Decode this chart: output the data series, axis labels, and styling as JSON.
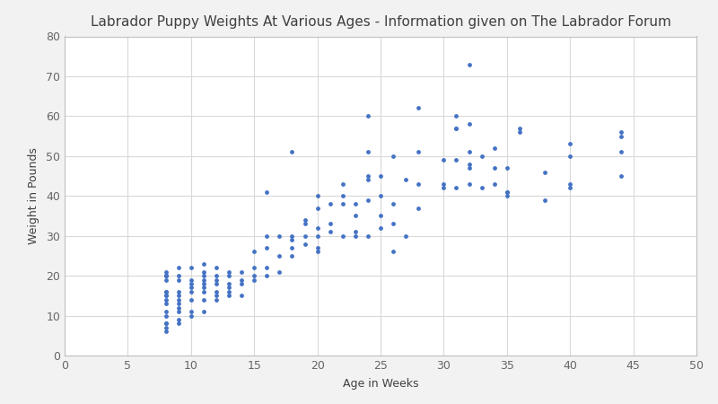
{
  "title": "Labrador Puppy Weights At Various Ages - Information given on The Labrador Forum",
  "xlabel": "Age in Weeks",
  "ylabel": "Weight in Pounds",
  "xlim": [
    0,
    50
  ],
  "ylim": [
    0,
    80
  ],
  "xticks": [
    0,
    5,
    10,
    15,
    20,
    25,
    30,
    35,
    40,
    45,
    50
  ],
  "yticks": [
    0,
    10,
    20,
    30,
    40,
    50,
    60,
    70,
    80
  ],
  "dot_color": "#4472C4",
  "dot_size": 12,
  "x": [
    8,
    8,
    8,
    8,
    8,
    8,
    8,
    8,
    8,
    8,
    8,
    8,
    8,
    8,
    8,
    8,
    8,
    8,
    9,
    9,
    9,
    9,
    9,
    9,
    9,
    9,
    9,
    9,
    9,
    10,
    10,
    10,
    10,
    10,
    10,
    10,
    10,
    11,
    11,
    11,
    11,
    11,
    11,
    11,
    11,
    11,
    12,
    12,
    12,
    12,
    12,
    12,
    12,
    13,
    13,
    13,
    13,
    13,
    13,
    14,
    14,
    14,
    14,
    15,
    15,
    15,
    15,
    16,
    16,
    16,
    16,
    16,
    17,
    17,
    17,
    18,
    18,
    18,
    18,
    18,
    19,
    19,
    19,
    19,
    20,
    20,
    20,
    20,
    20,
    20,
    21,
    21,
    21,
    22,
    22,
    22,
    22,
    23,
    23,
    23,
    23,
    24,
    24,
    24,
    24,
    24,
    24,
    25,
    25,
    25,
    25,
    26,
    26,
    26,
    26,
    27,
    27,
    28,
    28,
    28,
    28,
    30,
    30,
    30,
    31,
    31,
    31,
    31,
    31,
    32,
    32,
    32,
    32,
    32,
    32,
    33,
    33,
    34,
    34,
    34,
    35,
    35,
    35,
    35,
    36,
    36,
    38,
    38,
    40,
    40,
    40,
    40,
    44,
    44,
    44,
    44
  ],
  "y": [
    6,
    7,
    8,
    8,
    10,
    11,
    13,
    14,
    15,
    15,
    16,
    16,
    19,
    20,
    20,
    20,
    20,
    21,
    8,
    9,
    11,
    12,
    13,
    14,
    15,
    16,
    19,
    20,
    22,
    10,
    11,
    14,
    16,
    17,
    18,
    19,
    22,
    11,
    14,
    16,
    17,
    18,
    19,
    20,
    21,
    23,
    14,
    15,
    16,
    18,
    19,
    20,
    22,
    15,
    16,
    17,
    18,
    20,
    21,
    15,
    18,
    19,
    21,
    19,
    20,
    22,
    26,
    20,
    22,
    27,
    30,
    41,
    21,
    25,
    30,
    25,
    27,
    29,
    30,
    51,
    28,
    30,
    33,
    34,
    26,
    27,
    30,
    32,
    37,
    40,
    31,
    33,
    38,
    30,
    38,
    40,
    43,
    30,
    31,
    35,
    38,
    30,
    39,
    44,
    45,
    51,
    60,
    32,
    35,
    40,
    45,
    26,
    33,
    38,
    50,
    30,
    44,
    37,
    43,
    51,
    62,
    42,
    43,
    49,
    42,
    49,
    57,
    57,
    60,
    43,
    47,
    48,
    51,
    58,
    73,
    42,
    50,
    43,
    47,
    52,
    40,
    41,
    41,
    47,
    56,
    57,
    39,
    46,
    42,
    43,
    50,
    53,
    45,
    51,
    55,
    56
  ],
  "fig_bg": "#f2f2f2",
  "plot_bg": "#ffffff",
  "grid_color": "#d9d9d9",
  "spine_color": "#c0c0c0",
  "tick_color": "#666666",
  "title_fontsize": 11,
  "label_fontsize": 9,
  "tick_fontsize": 9
}
